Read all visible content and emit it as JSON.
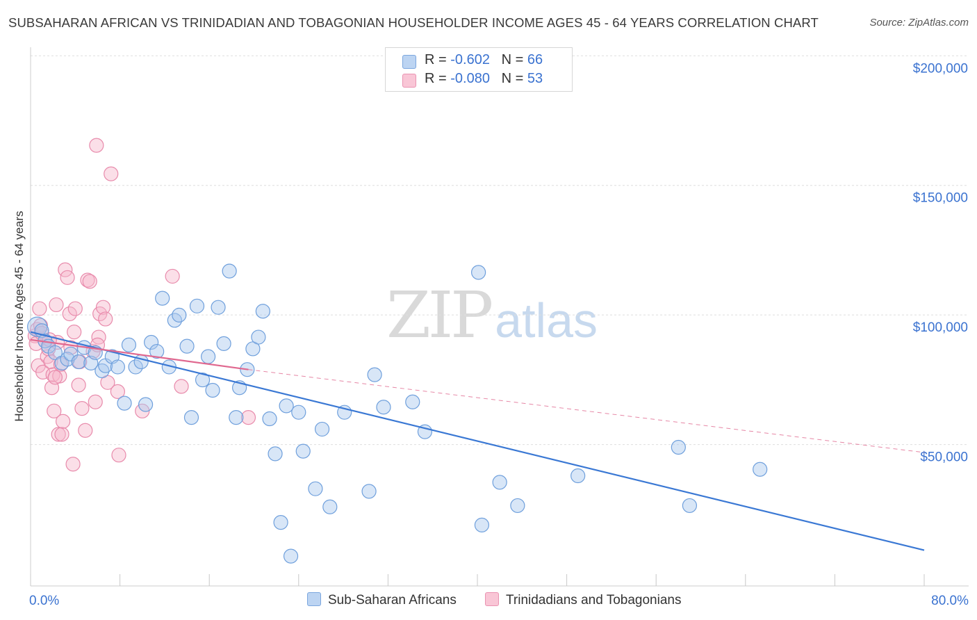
{
  "title": "SUBSAHARAN AFRICAN VS TRINIDADIAN AND TOBAGONIAN HOUSEHOLDER INCOME AGES 45 - 64 YEARS CORRELATION CHART",
  "source": "Source: ZipAtlas.com",
  "watermark": {
    "zip": "ZIP",
    "atlas": "atlas"
  },
  "stats": [
    {
      "r_label": "R = ",
      "r_value": "-0.602",
      "n_label": "N = ",
      "n_value": "66"
    },
    {
      "r_label": "R = ",
      "r_value": "-0.080",
      "n_label": "N = ",
      "n_value": "53"
    }
  ],
  "legend": [
    "Sub-Saharan Africans",
    "Trinidadians and Tobagonians"
  ],
  "colors": {
    "blue_fill": "#a9c8ee",
    "blue_stroke": "#6e9fdc",
    "blue_line": "#3a78d4",
    "pink_fill": "#f6b8cd",
    "pink_stroke": "#e88aab",
    "pink_line": "#e0688f",
    "tick_text": "#3a72d0",
    "grid": "#dedede"
  },
  "chart_data": {
    "type": "scatter",
    "title": "SUBSAHARAN AFRICAN VS TRINIDADIAN AND TOBAGONIAN HOUSEHOLDER INCOME AGES 45 - 64 YEARS CORRELATION CHART",
    "xlabel": "",
    "ylabel": "Householder Income Ages 45 - 64 years",
    "xlim": [
      0,
      80
    ],
    "ylim": [
      0,
      210000
    ],
    "x_tick_labels": [
      "0.0%",
      "80.0%"
    ],
    "y_ticks": [
      50000,
      100000,
      150000,
      200000
    ],
    "y_tick_labels": [
      "$50,000",
      "$100,000",
      "$150,000",
      "$200,000"
    ],
    "grid": true,
    "legend_position": "bottom",
    "series": [
      {
        "name": "Sub-Saharan Africans",
        "r": -0.602,
        "n": 66,
        "trend": {
          "x0": 0,
          "y0": 98000,
          "x1": 80,
          "y1": 13800
        },
        "points": [
          [
            0.6,
            100000,
            14
          ],
          [
            1.0,
            98500,
            10
          ],
          [
            1.3,
            94500,
            10
          ],
          [
            1.6,
            92500,
            10
          ],
          [
            2.2,
            90000,
            10
          ],
          [
            2.8,
            86000,
            10
          ],
          [
            3.3,
            87500,
            10
          ],
          [
            3.6,
            89500,
            10
          ],
          [
            4.3,
            86500,
            10
          ],
          [
            4.8,
            92000,
            10
          ],
          [
            5.4,
            86000,
            10
          ],
          [
            5.8,
            90000,
            10
          ],
          [
            6.4,
            83000,
            10
          ],
          [
            6.7,
            85000,
            10
          ],
          [
            7.3,
            88500,
            10
          ],
          [
            7.8,
            84500,
            10
          ],
          [
            8.4,
            70500,
            10
          ],
          [
            8.8,
            93000,
            10
          ],
          [
            9.4,
            84500,
            10
          ],
          [
            9.9,
            86500,
            10
          ],
          [
            10.3,
            70000,
            10
          ],
          [
            10.8,
            94000,
            10
          ],
          [
            11.3,
            90500,
            10
          ],
          [
            11.8,
            111000,
            10
          ],
          [
            12.4,
            84500,
            10
          ],
          [
            12.9,
            102500,
            10
          ],
          [
            13.3,
            104500,
            10
          ],
          [
            14.0,
            92500,
            10
          ],
          [
            14.4,
            65000,
            10
          ],
          [
            14.9,
            108000,
            10
          ],
          [
            15.4,
            79500,
            10
          ],
          [
            15.9,
            88500,
            10
          ],
          [
            16.3,
            75500,
            10
          ],
          [
            16.8,
            107500,
            10
          ],
          [
            17.3,
            93500,
            10
          ],
          [
            17.8,
            121500,
            10
          ],
          [
            18.4,
            65000,
            10
          ],
          [
            18.7,
            76500,
            10
          ],
          [
            19.4,
            83500,
            10
          ],
          [
            19.9,
            91500,
            10
          ],
          [
            20.4,
            96000,
            10
          ],
          [
            20.8,
            106000,
            10
          ],
          [
            21.4,
            64500,
            10
          ],
          [
            21.9,
            51000,
            10
          ],
          [
            22.4,
            24500,
            10
          ],
          [
            22.9,
            69500,
            10
          ],
          [
            23.3,
            11500,
            10
          ],
          [
            24.0,
            67000,
            10
          ],
          [
            24.4,
            52000,
            10
          ],
          [
            25.5,
            37500,
            10
          ],
          [
            26.1,
            60500,
            10
          ],
          [
            26.8,
            30500,
            10
          ],
          [
            28.1,
            67000,
            10
          ],
          [
            30.3,
            36500,
            10
          ],
          [
            30.8,
            81500,
            10
          ],
          [
            31.6,
            69000,
            10
          ],
          [
            34.2,
            71000,
            10
          ],
          [
            35.3,
            59500,
            10
          ],
          [
            40.1,
            121000,
            10
          ],
          [
            40.4,
            23500,
            10
          ],
          [
            42.0,
            40000,
            10
          ],
          [
            43.6,
            31000,
            10
          ],
          [
            49.0,
            42500,
            10
          ],
          [
            58.0,
            53500,
            10
          ],
          [
            59.0,
            31000,
            10
          ],
          [
            65.3,
            45000,
            10
          ]
        ]
      },
      {
        "name": "Trinidadians and Tobagonians",
        "r": -0.08,
        "n": 53,
        "trend": {
          "x0": 0,
          "y0": 95000,
          "x1": 19.5,
          "y1": 83500,
          "dash_x1": 80,
          "dash_y1": 51500
        },
        "points": [
          [
            0.4,
            96500,
            10
          ],
          [
            0.5,
            93500,
            10
          ],
          [
            0.6,
            99000,
            10
          ],
          [
            0.7,
            85000,
            10
          ],
          [
            0.8,
            107000,
            10
          ],
          [
            0.9,
            100500,
            10
          ],
          [
            1.0,
            97500,
            10
          ],
          [
            1.1,
            82500,
            10
          ],
          [
            1.3,
            94500,
            10
          ],
          [
            1.5,
            88500,
            10
          ],
          [
            1.6,
            91500,
            10
          ],
          [
            1.8,
            86500,
            10
          ],
          [
            1.9,
            76500,
            10
          ],
          [
            2.0,
            81500,
            10
          ],
          [
            2.1,
            67500,
            10
          ],
          [
            2.3,
            108500,
            10
          ],
          [
            2.4,
            94000,
            10
          ],
          [
            2.5,
            58500,
            10
          ],
          [
            2.6,
            81000,
            10
          ],
          [
            2.7,
            85500,
            10
          ],
          [
            2.8,
            58500,
            10
          ],
          [
            2.9,
            63500,
            10
          ],
          [
            3.1,
            122000,
            10
          ],
          [
            3.3,
            119000,
            10
          ],
          [
            3.5,
            105000,
            10
          ],
          [
            3.6,
            92000,
            10
          ],
          [
            3.8,
            47000,
            10
          ],
          [
            3.9,
            98000,
            10
          ],
          [
            4.0,
            107000,
            10
          ],
          [
            4.3,
            77500,
            10
          ],
          [
            4.6,
            68500,
            10
          ],
          [
            4.9,
            60000,
            10
          ],
          [
            5.1,
            118000,
            10
          ],
          [
            5.3,
            117500,
            10
          ],
          [
            4.4,
            86500,
            10
          ],
          [
            5.6,
            90500,
            10
          ],
          [
            5.8,
            71000,
            10
          ],
          [
            6.2,
            105000,
            10
          ],
          [
            6.5,
            107500,
            10
          ],
          [
            5.9,
            170000,
            10
          ],
          [
            6.1,
            96000,
            10
          ],
          [
            6.7,
            103000,
            10
          ],
          [
            6.9,
            78500,
            10
          ],
          [
            7.2,
            159000,
            10
          ],
          [
            7.8,
            75000,
            10
          ],
          [
            7.9,
            50500,
            10
          ],
          [
            10.0,
            67500,
            10
          ],
          [
            12.7,
            119500,
            10
          ],
          [
            13.5,
            77000,
            10
          ],
          [
            19.5,
            65000,
            10
          ],
          [
            1.7,
            95000,
            10
          ],
          [
            2.2,
            80500,
            10
          ],
          [
            6.0,
            93000,
            10
          ]
        ]
      }
    ]
  }
}
